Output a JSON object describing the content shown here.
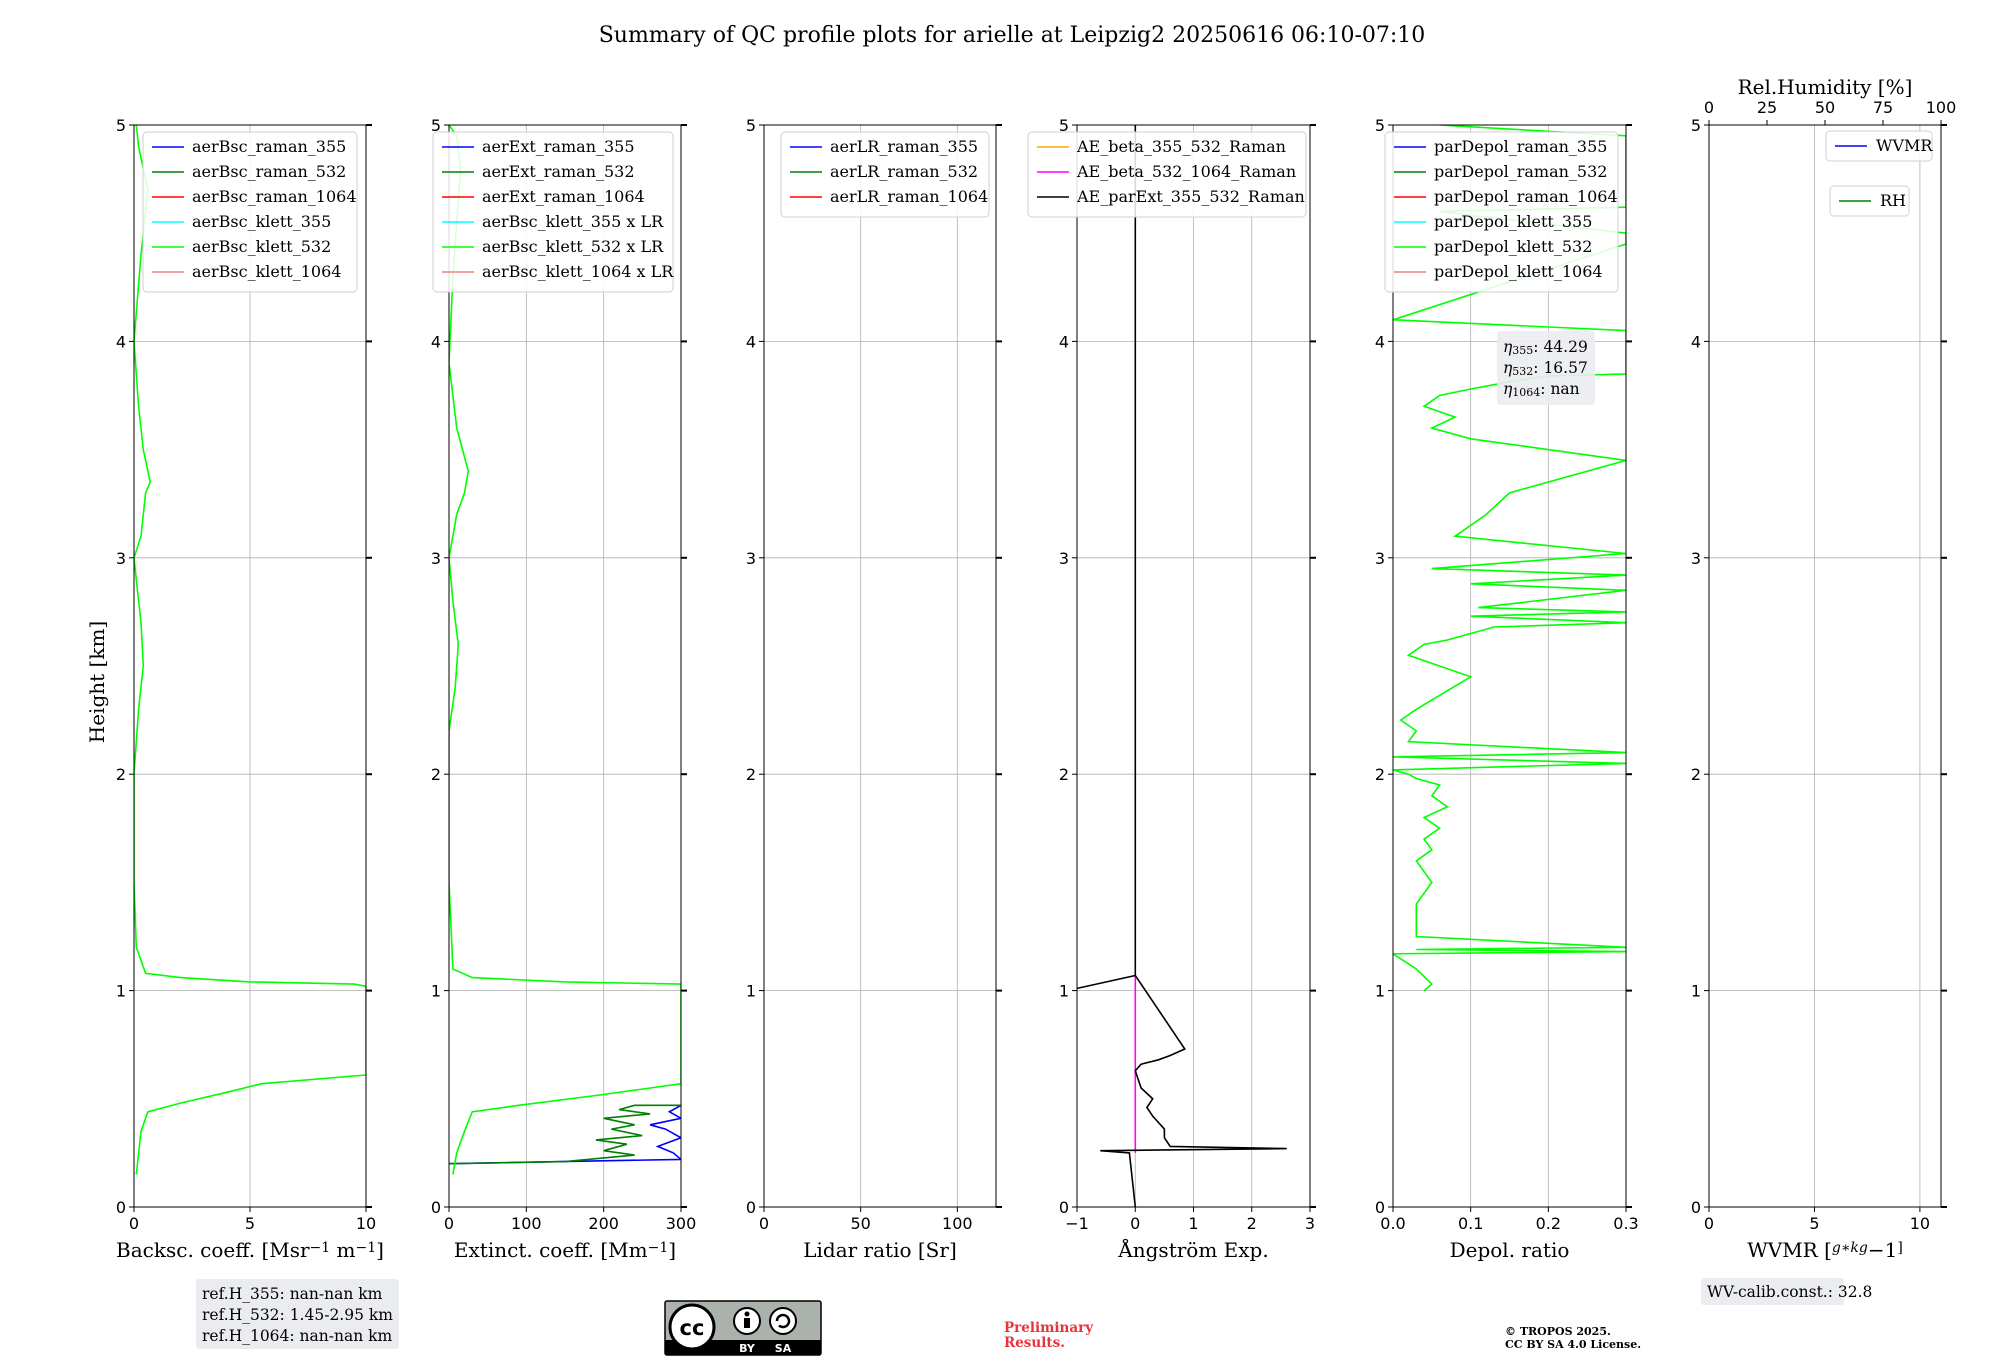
{
  "title": "Summary of QC profile plots for arielle at Leipzig2 20250616 06:10-07:10",
  "ylabel": "Height [km]",
  "height_ticks": [
    "0",
    "1",
    "2",
    "3",
    "4",
    "5"
  ],
  "chart_data": [
    {
      "type": "line",
      "orientation": "profile",
      "xlabel": "Backsc. coeff. [Msr$^{-1}$ m$^{-1}$]",
      "xlabel_parts": [
        "Backsc. coeff. [Msr",
        "−1",
        " m",
        "−1",
        "]"
      ],
      "xlim": [
        0,
        10
      ],
      "ylim": [
        0,
        5
      ],
      "xticks": [
        0,
        5,
        10
      ],
      "xtick_labels": [
        "0",
        "5",
        "10"
      ],
      "grid": true,
      "legend_position": "top-right",
      "series": [
        {
          "name": "aerBsc_raman_355",
          "color": "#0000ff",
          "x": [],
          "y": []
        },
        {
          "name": "aerBsc_raman_532",
          "color": "#008000",
          "x": [],
          "y": []
        },
        {
          "name": "aerBsc_raman_1064",
          "color": "#ff0000",
          "x": [],
          "y": []
        },
        {
          "name": "aerBsc_klett_355",
          "color": "#00ffff",
          "x": [],
          "y": []
        },
        {
          "name": "aerBsc_klett_532",
          "color": "#00ff00",
          "x": [
            0.1,
            0.15,
            0.3,
            0.6,
            2.0,
            4.0,
            5.5,
            10.0,
            10.0,
            9.5,
            5.0,
            2.0,
            0.5,
            0.1,
            0.0,
            0.0,
            0.2,
            0.4,
            0.3,
            0.1,
            0.0,
            0.3,
            0.5,
            0.7,
            0.4,
            0.2,
            0.0,
            0.3,
            0.6,
            0.2,
            0.1
          ],
          "y": [
            0.15,
            0.2,
            0.35,
            0.44,
            0.48,
            0.53,
            0.57,
            0.61,
            1.02,
            1.03,
            1.04,
            1.06,
            1.08,
            1.2,
            1.5,
            2.0,
            2.3,
            2.5,
            2.7,
            2.9,
            3.0,
            3.1,
            3.3,
            3.35,
            3.5,
            3.7,
            4.0,
            4.4,
            4.7,
            4.9,
            5.0
          ]
        },
        {
          "name": "aerBsc_klett_1064",
          "color": "#f08080",
          "x": [],
          "y": []
        }
      ]
    },
    {
      "type": "line",
      "orientation": "profile",
      "xlabel": "Extinct. coeff. [Mm$^{-1}$]",
      "xlabel_parts": [
        "Extinct. coeff. [Mm",
        "−1",
        "]"
      ],
      "xlim": [
        0,
        300
      ],
      "ylim": [
        0,
        5
      ],
      "xticks": [
        0,
        100,
        200,
        300
      ],
      "xtick_labels": [
        "0",
        "100",
        "200",
        "300"
      ],
      "grid": true,
      "legend_position": "top-left",
      "series": [
        {
          "name": "aerExt_raman_355",
          "color": "#0000ff",
          "x": [
            0,
            300,
            290,
            270,
            300,
            280,
            260,
            300,
            285,
            300
          ],
          "y": [
            0.2,
            0.22,
            0.25,
            0.28,
            0.32,
            0.36,
            0.38,
            0.41,
            0.44,
            0.47
          ]
        },
        {
          "name": "aerExt_raman_532",
          "color": "#008000",
          "x": [
            0,
            150,
            240,
            200,
            230,
            190,
            250,
            210,
            240,
            200,
            260,
            220,
            240,
            300
          ],
          "y": [
            0.2,
            0.21,
            0.24,
            0.26,
            0.29,
            0.31,
            0.33,
            0.36,
            0.38,
            0.41,
            0.43,
            0.45,
            0.47,
            0.47
          ]
        },
        {
          "name": "aerExt_raman_1064",
          "color": "#ff0000",
          "x": [],
          "y": []
        },
        {
          "name": "aerBsc_klett_355 x LR",
          "color": "#00ffff",
          "x": [],
          "y": []
        },
        {
          "name": "aerBsc_klett_532 x LR",
          "color": "#00ff00",
          "x": [
            5,
            10,
            20,
            30,
            90,
            200,
            300,
            300,
            150,
            30,
            5,
            0,
            0,
            8,
            12,
            5,
            0,
            10,
            20,
            25,
            10,
            0,
            5,
            15,
            10,
            0
          ],
          "y": [
            0.15,
            0.25,
            0.35,
            0.44,
            0.47,
            0.52,
            0.57,
            1.03,
            1.04,
            1.06,
            1.1,
            1.5,
            2.2,
            2.4,
            2.6,
            2.8,
            3.0,
            3.2,
            3.3,
            3.4,
            3.6,
            3.9,
            4.3,
            4.8,
            4.95,
            5.0
          ]
        },
        {
          "name": "aerBsc_klett_1064 x LR",
          "color": "#f08080",
          "x": [],
          "y": []
        }
      ]
    },
    {
      "type": "line",
      "orientation": "profile",
      "xlabel": "Lidar ratio [Sr]",
      "xlim": [
        0,
        120
      ],
      "ylim": [
        0,
        5
      ],
      "xticks": [
        0,
        50,
        100
      ],
      "xtick_labels": [
        "0",
        "50",
        "100"
      ],
      "grid": true,
      "legend_position": "top-right",
      "series": [
        {
          "name": "aerLR_raman_355",
          "color": "#0000ff",
          "x": [],
          "y": []
        },
        {
          "name": "aerLR_raman_532",
          "color": "#008000",
          "x": [],
          "y": []
        },
        {
          "name": "aerLR_raman_1064",
          "color": "#ff0000",
          "x": [],
          "y": []
        }
      ]
    },
    {
      "type": "line",
      "orientation": "profile",
      "xlabel": "Ångström Exp.",
      "xlim": [
        -1,
        3
      ],
      "ylim": [
        0,
        5
      ],
      "xticks": [
        -1,
        0,
        1,
        2,
        3
      ],
      "xtick_labels": [
        "−1",
        "0",
        "1",
        "2",
        "3"
      ],
      "grid": true,
      "legend_position": "top",
      "series": [
        {
          "name": "AE_beta_355_532_Raman",
          "color": "#ffa500",
          "x": [],
          "y": []
        },
        {
          "name": "AE_beta_532_1064_Raman",
          "color": "#ff00ff",
          "x": [
            0,
            0,
            0,
            0
          ],
          "y": [
            0.25,
            0.6,
            1.0,
            1.07
          ]
        },
        {
          "name": "AE_parExt_355_532_Raman",
          "color": "#000000",
          "x": [
            0,
            -0.1,
            -0.6,
            2.6,
            0.6,
            0.5,
            0.5,
            0.3,
            0.2,
            0.3,
            0.1,
            0.0,
            0.1,
            0.4,
            0.6,
            0.85,
            0,
            -1.0,
            0,
            0,
            0
          ],
          "y": [
            0.0,
            0.25,
            0.26,
            0.27,
            0.28,
            0.32,
            0.36,
            0.42,
            0.46,
            0.5,
            0.55,
            0.63,
            0.66,
            0.68,
            0.7,
            0.73,
            1.07,
            1.01,
            1.07,
            2.0,
            5.0
          ]
        }
      ]
    },
    {
      "type": "line",
      "orientation": "profile",
      "xlabel": "Depol. ratio",
      "xlim": [
        0,
        0.3
      ],
      "ylim": [
        0,
        5
      ],
      "xticks": [
        0,
        0.1,
        0.2,
        0.3
      ],
      "xtick_labels": [
        "0.0",
        "0.1",
        "0.2",
        "0.3"
      ],
      "grid": true,
      "legend_position": "top-left",
      "series": [
        {
          "name": "parDepol_raman_355",
          "color": "#0000ff",
          "x": [],
          "y": []
        },
        {
          "name": "parDepol_raman_532",
          "color": "#008000",
          "x": [],
          "y": []
        },
        {
          "name": "parDepol_raman_1064",
          "color": "#ff0000",
          "x": [],
          "y": []
        },
        {
          "name": "parDepol_klett_355",
          "color": "#00ffff",
          "x": [],
          "y": []
        },
        {
          "name": "parDepol_klett_532",
          "color": "#00ff00",
          "x": [
            0.04,
            0.05,
            0.03,
            0.0,
            0.3,
            0.03,
            0.3,
            0.03,
            0.03,
            0.05,
            0.03,
            0.05,
            0.04,
            0.06,
            0.04,
            0.07,
            0.05,
            0.06,
            0.03,
            0.02,
            0.0,
            0.3,
            0.0,
            0.3,
            0.02,
            0.03,
            0.01,
            0.03,
            0.1,
            0.02,
            0.04,
            0.07,
            0.1,
            0.13,
            0.3,
            0.1,
            0.3,
            0.11,
            0.3,
            0.1,
            0.3,
            0.05,
            0.3,
            0.08,
            0.12,
            0.15,
            0.3,
            0.1,
            0.05,
            0.08,
            0.04,
            0.06,
            0.1,
            0.13,
            0.16,
            0.2,
            0.3,
            0.3,
            0.0,
            0.3,
            0.3,
            0.06,
            0.3,
            0.3,
            0.3,
            0.3,
            0.3,
            0.06
          ],
          "y": [
            1.0,
            1.03,
            1.1,
            1.17,
            1.18,
            1.19,
            1.2,
            1.25,
            1.4,
            1.5,
            1.6,
            1.65,
            1.7,
            1.75,
            1.8,
            1.85,
            1.9,
            1.95,
            1.98,
            2.0,
            2.02,
            2.05,
            2.08,
            2.1,
            2.15,
            2.2,
            2.25,
            2.3,
            2.45,
            2.55,
            2.6,
            2.62,
            2.65,
            2.68,
            2.7,
            2.73,
            2.75,
            2.77,
            2.85,
            2.88,
            2.92,
            2.95,
            3.02,
            3.1,
            3.2,
            3.3,
            3.45,
            3.55,
            3.6,
            3.65,
            3.7,
            3.75,
            3.78,
            3.8,
            3.82,
            3.84,
            3.85,
            4.05,
            4.1,
            4.45,
            4.5,
            4.6,
            4.62,
            4.7,
            4.8,
            4.9,
            4.95,
            5.0
          ]
        },
        {
          "name": "parDepol_klett_1064",
          "color": "#f08080",
          "x": [],
          "y": []
        }
      ],
      "annotation": {
        "lines": [
          {
            "sym": "η",
            "sub": "355",
            "value": ": 44.29"
          },
          {
            "sym": "η",
            "sub": "532",
            "value": ": 16.57"
          },
          {
            "sym": "η",
            "sub": "1064",
            "value": ": nan"
          }
        ]
      }
    },
    {
      "type": "line",
      "orientation": "profile",
      "xlabel": "WVMR [$g*kg^{-1}$]",
      "xlabel_parts": [
        "WVMR [",
        "g∗kg",
        "−1",
        "]"
      ],
      "xlim": [
        0,
        11
      ],
      "ylim": [
        0,
        5
      ],
      "xticks": [
        0,
        5,
        10
      ],
      "xtick_labels": [
        "0",
        "5",
        "10"
      ],
      "top_axis": {
        "label": "Rel.Humidity [%]",
        "xlim": [
          0,
          100
        ],
        "xticks": [
          0,
          25,
          50,
          75,
          100
        ],
        "xtick_labels": [
          "0",
          "25",
          "50",
          "75",
          "100"
        ]
      },
      "grid": true,
      "legend_position": "top-right",
      "series": [
        {
          "name": "WVMR",
          "color": "#0000ff",
          "x": [],
          "y": []
        },
        {
          "name": "RH",
          "color": "#008000",
          "x": [],
          "y": []
        }
      ]
    }
  ],
  "notes": {
    "ref_heights": [
      "ref.H_355: nan-nan km",
      "ref.H_532: 1.45-2.95 km",
      "ref.H_1064: nan-nan km"
    ],
    "license_badge_text": [
      "BY",
      "SA"
    ],
    "preliminary": [
      "Preliminary",
      "Results."
    ],
    "copyright": [
      "© TROPOS 2025.",
      "CC BY SA 4.0 License."
    ],
    "wv_calib": "WV-calib.const.: 32.8"
  }
}
